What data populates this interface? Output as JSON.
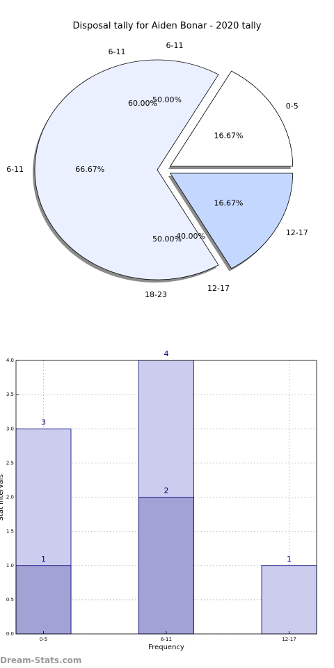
{
  "chart_data": [
    {
      "type": "pie",
      "title": "Disposal tally for Aiden Bonar - 2020 tally",
      "rings": [
        {
          "name": "outer",
          "slices": [
            {
              "label": "0-5",
              "pct_label": "16.67%",
              "value": 16.67,
              "color": "#ffffff"
            },
            {
              "label": "12-17",
              "pct_label": "16.67%",
              "value": 16.67,
              "color": "#c4d8ff"
            },
            {
              "label": "6-11",
              "pct_label": "66.67%",
              "value": 66.67,
              "color": "#eaf0ff"
            }
          ]
        },
        {
          "name": "inner",
          "slices": [
            {
              "label": "6-11",
              "pct_label": "50.00%",
              "value": 50.0
            },
            {
              "label": "18-23",
              "pct_label": "50.00%",
              "value": 50.0
            },
            {
              "label": "6-11",
              "pct_label": "60.00%",
              "value": 60.0
            },
            {
              "label": "12-17",
              "pct_label": "40.00%",
              "value": 40.0
            }
          ]
        }
      ]
    },
    {
      "type": "bar",
      "xlabel": "Frequency",
      "ylabel": "Stat intervals",
      "categories": [
        "0-5",
        "6-11",
        "12-17"
      ],
      "series": [
        {
          "values": [
            3,
            4,
            1
          ],
          "color": "#ccccee"
        },
        {
          "values": [
            1,
            2,
            0
          ],
          "color": "#a2a2d4"
        }
      ],
      "bar_labels": [
        {
          "category": "0-5",
          "value": 3,
          "text": "3"
        },
        {
          "category": "0-5",
          "value": 1,
          "text": "1"
        },
        {
          "category": "6-11",
          "value": 4,
          "text": "4"
        },
        {
          "category": "6-11",
          "value": 2,
          "text": "2"
        },
        {
          "category": "12-17",
          "value": 1,
          "text": "1"
        }
      ],
      "ylim": [
        0,
        4
      ],
      "yticks": [
        "0.0",
        "0.5",
        "1.0",
        "1.5",
        "2.0",
        "2.5",
        "3.0",
        "3.5",
        "4.0"
      ],
      "grid": true
    }
  ],
  "watermark": "Dream-Stats.com"
}
